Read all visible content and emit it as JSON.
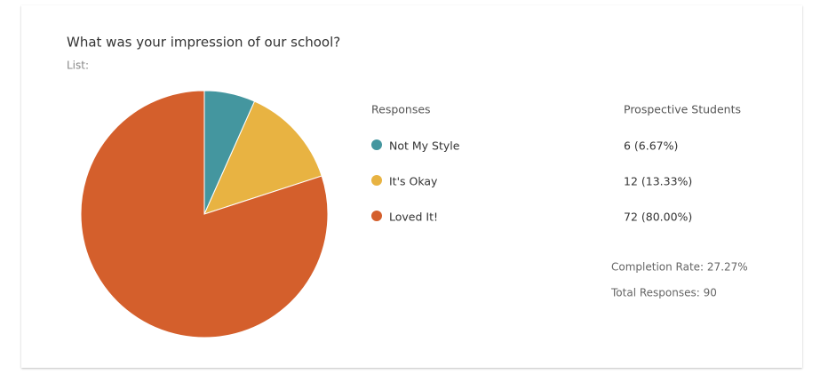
{
  "chart_data": {
    "type": "pie",
    "title": "What was your impression of our school?",
    "subtitle": "List:",
    "legend_header": "Responses",
    "value_header": "Prospective Students",
    "categories": [
      "Not My Style",
      "It's Okay",
      "Loved It!"
    ],
    "values": [
      6,
      12,
      72
    ],
    "value_labels": [
      "6 (6.67%)",
      "12 (13.33%)",
      "72 (80.00%)"
    ],
    "colors": [
      "#44969f",
      "#e8b342",
      "#d45f2c"
    ],
    "notes": [
      "Completion Rate: 27.27%",
      "Total Responses: 90"
    ]
  }
}
